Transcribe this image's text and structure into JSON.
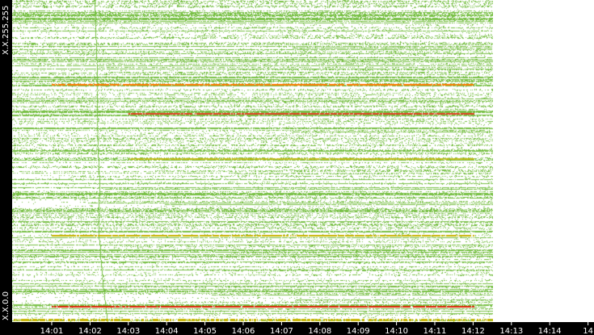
{
  "chart_data": {
    "type": "scatter",
    "description_axis": {
      "y_top_label": "X.X.255.255",
      "y_bottom_label": "X.X.0.0"
    },
    "x_axis": {
      "ticks": [
        "14:01",
        "14:02",
        "14:03",
        "14:04",
        "14:05",
        "14:06",
        "14:07",
        "14:08",
        "14:09",
        "14:10",
        "14:11",
        "14:12",
        "14:13",
        "14:14",
        "14"
      ],
      "data_end_tick": "14:12"
    },
    "y_axis": {
      "range": [
        "X.X.0.0",
        "X.X.255.255"
      ]
    },
    "colors": {
      "background": "#ffffff",
      "frame": "#000000",
      "low_activity": "#77c044",
      "medium_activity": "#c8b400",
      "high_activity": "#ff7a00",
      "very_high_activity": "#e02000",
      "axis_text": "#ffffff"
    },
    "notable_bands": [
      {
        "position": 0.74,
        "level": "high_activity",
        "start_tick": "14:01",
        "end_tick": "14:12"
      },
      {
        "position": 0.65,
        "level": "very_high_activity",
        "start_tick": "14:03",
        "end_tick": "14:12"
      },
      {
        "position": 0.51,
        "level": "medium_activity",
        "start_tick": "14:03",
        "end_tick": "14:12"
      },
      {
        "position": 0.27,
        "level": "medium_activity",
        "start_tick": "14:01",
        "end_tick": "14:12"
      },
      {
        "position": 0.05,
        "level": "very_high_activity",
        "start_tick": "14:01",
        "end_tick": "14:12"
      }
    ]
  }
}
